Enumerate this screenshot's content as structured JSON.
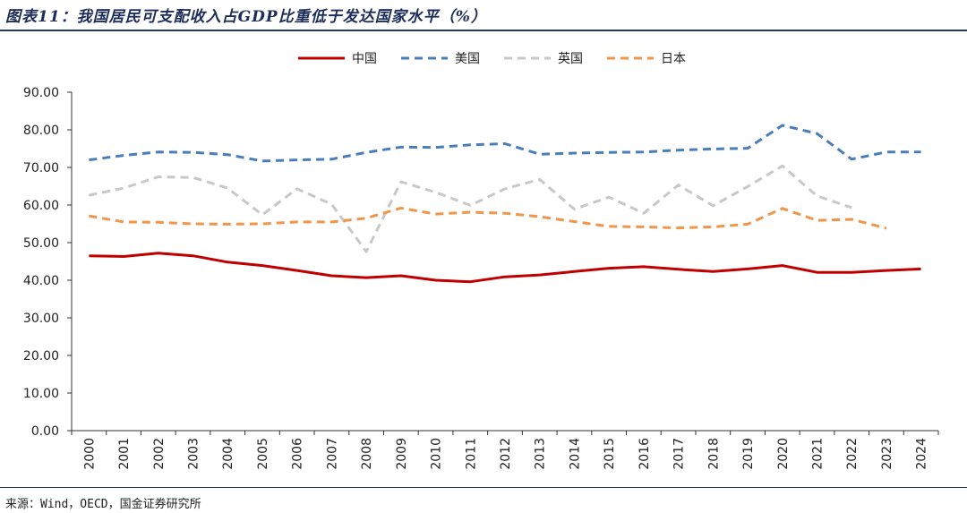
{
  "figure": {
    "title": "图表11：我国居民可支配收入占GDP比重低于发达国家水平（%）",
    "source": "来源：Wind，OECD，国金证券研究所"
  },
  "chart_data": {
    "type": "line",
    "title": "图表11：我国居民可支配收入占GDP比重低于发达国家水平（%）",
    "xlabel": "",
    "ylabel": "",
    "ylim": [
      0,
      90
    ],
    "yticks": [
      "0.00",
      "10.00",
      "20.00",
      "30.00",
      "40.00",
      "50.00",
      "60.00",
      "70.00",
      "80.00",
      "90.00"
    ],
    "categories": [
      "2000",
      "2001",
      "2002",
      "2003",
      "2004",
      "2005",
      "2006",
      "2007",
      "2008",
      "2009",
      "2010",
      "2011",
      "2012",
      "2013",
      "2014",
      "2015",
      "2016",
      "2017",
      "2018",
      "2019",
      "2020",
      "2021",
      "2022",
      "2023",
      "2024"
    ],
    "legend_position": "top-center",
    "series": [
      {
        "name": "中国",
        "color": "#c00000",
        "dash": "solid",
        "values": [
          46.5,
          46.3,
          47.2,
          46.5,
          44.8,
          43.9,
          42.6,
          41.2,
          40.7,
          41.2,
          40.0,
          39.6,
          40.9,
          41.4,
          42.3,
          43.2,
          43.6,
          42.9,
          42.3,
          43.0,
          43.9,
          42.1,
          42.1,
          42.6,
          43.0
        ]
      },
      {
        "name": "美国",
        "color": "#4a7ebb",
        "dash": "dashed",
        "values": [
          72.0,
          73.2,
          74.1,
          74.0,
          73.4,
          71.7,
          72.0,
          72.2,
          74.0,
          75.4,
          75.3,
          76.0,
          76.3,
          73.5,
          73.8,
          74.0,
          74.1,
          74.6,
          74.9,
          75.1,
          81.2,
          79.0,
          72.2,
          74.1,
          74.1
        ]
      },
      {
        "name": "英国",
        "color": "#c8c8c8",
        "dash": "dashed",
        "values": [
          62.6,
          64.5,
          67.5,
          67.3,
          64.5,
          57.4,
          64.3,
          60.2,
          47.6,
          66.2,
          63.4,
          59.9,
          64.3,
          66.8,
          58.9,
          62.1,
          57.8,
          65.3,
          59.8,
          64.9,
          70.4,
          62.4,
          59.3,
          null,
          null
        ]
      },
      {
        "name": "日本",
        "color": "#f0954a",
        "dash": "dashed",
        "values": [
          57.1,
          55.5,
          55.4,
          55.0,
          54.9,
          55.0,
          55.5,
          55.5,
          56.5,
          59.2,
          57.6,
          58.1,
          57.8,
          56.9,
          55.6,
          54.3,
          54.2,
          53.9,
          54.2,
          54.9,
          59.1,
          55.9,
          56.2,
          53.8,
          null
        ]
      }
    ]
  }
}
